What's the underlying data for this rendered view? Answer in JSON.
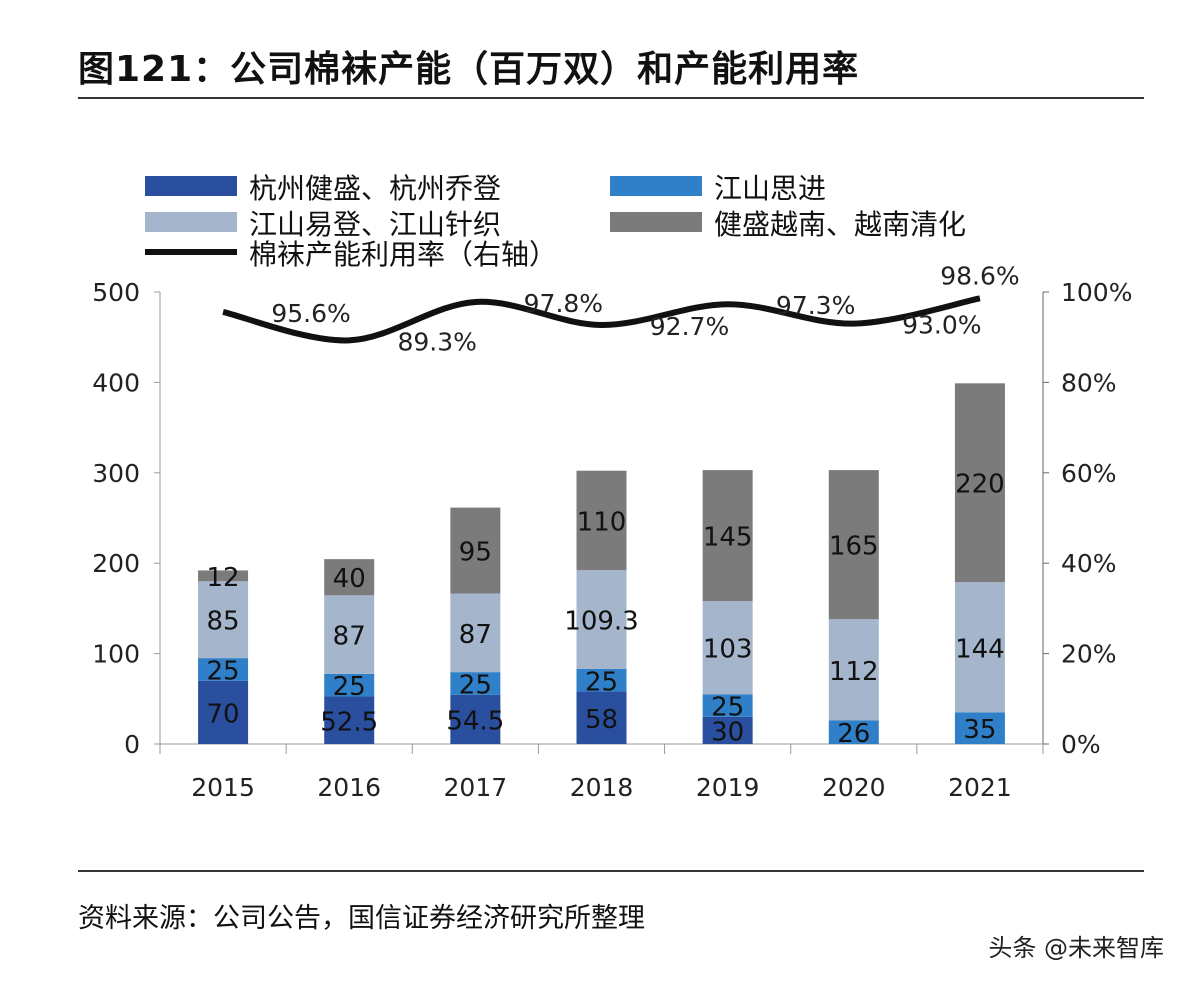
{
  "title": "图121：公司棉袜产能（百万双）和产能利用率",
  "source": "资料来源：公司公告，国信证券经济研究所整理",
  "watermark": "头条 @未来智库",
  "chart_data": {
    "type": "bar",
    "stacked": true,
    "categories": [
      "2015",
      "2016",
      "2017",
      "2018",
      "2019",
      "2020",
      "2021"
    ],
    "series": [
      {
        "name": "杭州健盛、杭州乔登",
        "color": "#2b4f9f",
        "values": [
          70,
          52.5,
          54.5,
          58,
          30,
          0,
          0
        ],
        "labels": [
          "70",
          "52.5",
          "54.5",
          "58",
          "30",
          "",
          ""
        ]
      },
      {
        "name": "江山思进",
        "color": "#2f80c8",
        "values": [
          25,
          25,
          25,
          25,
          25,
          26,
          35
        ],
        "labels": [
          "25",
          "25",
          "25",
          "25",
          "25",
          "26",
          "35"
        ]
      },
      {
        "name": "江山易登、江山针织",
        "color": "#a4b5cc",
        "values": [
          85,
          87,
          87,
          109.3,
          103,
          112,
          144
        ],
        "labels": [
          "85",
          "87",
          "87",
          "109.3",
          "103",
          "112",
          "144"
        ]
      },
      {
        "name": "健盛越南、越南清化",
        "color": "#7b7b7b",
        "values": [
          12,
          40,
          95,
          110,
          145,
          165,
          220
        ],
        "labels": [
          "12",
          "40",
          "95",
          "110",
          "145",
          "165",
          "220"
        ]
      }
    ],
    "line": {
      "name": "棉袜产能利用率（右轴）",
      "color": "#111111",
      "values": [
        95.6,
        89.3,
        97.8,
        92.7,
        97.3,
        93.0,
        98.6
      ],
      "labels": [
        "95.6%",
        "89.3%",
        "97.8%",
        "92.7%",
        "97.3%",
        "93.0%",
        "98.6%"
      ]
    },
    "ylim": [
      0,
      500
    ],
    "yticks": [
      "0",
      "100",
      "200",
      "300",
      "400",
      "500"
    ],
    "y2lim": [
      0,
      100
    ],
    "y2ticks": [
      "0%",
      "20%",
      "40%",
      "60%",
      "80%",
      "100%"
    ],
    "legend_placement": "top",
    "grid": false
  }
}
